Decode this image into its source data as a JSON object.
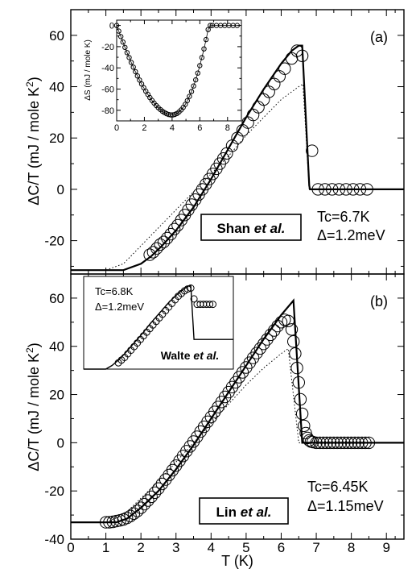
{
  "chart_data": [
    {
      "panel": "(a)",
      "type": "line",
      "xlabel": "",
      "ylabel": "ΔC/T (mJ / mole K²)",
      "xlim": [
        0,
        9.5
      ],
      "ylim": [
        -33,
        70
      ],
      "x_ticks": [
        0,
        1,
        2,
        3,
        4,
        5,
        6,
        7,
        8,
        9
      ],
      "y_ticks": [
        -20,
        0,
        20,
        40,
        60
      ],
      "y_tick_labels": [
        "-20",
        "0",
        "20",
        "40",
        "60"
      ],
      "grid": false,
      "series": [
        {
          "style": "solid",
          "x": [
            0,
            1.5,
            2.0,
            2.3,
            2.6,
            3.0,
            3.5,
            4.0,
            4.5,
            5.0,
            5.5,
            6.0,
            6.3,
            6.5,
            6.6,
            6.8,
            6.82,
            9.5
          ],
          "y": [
            -31.5,
            -31.5,
            -29,
            -26,
            -22,
            -16,
            -7,
            4,
            16,
            28,
            39,
            49,
            54,
            56,
            56,
            1.5,
            0,
            0
          ]
        },
        {
          "style": "dotted",
          "x": [
            0,
            1.0,
            1.5,
            2.0,
            2.5,
            3.0,
            3.5,
            4.0,
            4.5,
            5.0,
            5.5,
            6.0,
            6.5,
            6.62,
            6.8,
            9.5
          ],
          "y": [
            -31.5,
            -31.5,
            -29,
            -22,
            -15,
            -8,
            -1,
            6,
            13,
            21,
            28,
            35,
            40,
            41,
            0,
            0
          ]
        },
        {
          "style": "open-circle",
          "x": [
            2.25,
            2.35,
            2.45,
            2.55,
            2.65,
            2.75,
            2.85,
            2.95,
            3.05,
            3.15,
            3.25,
            3.35,
            3.45,
            3.55,
            3.65,
            3.75,
            3.85,
            3.95,
            4.05,
            4.15,
            4.25,
            4.35,
            4.45,
            4.6,
            4.75,
            4.9,
            5.05,
            5.2,
            5.35,
            5.5,
            5.65,
            5.8,
            5.95,
            6.1,
            6.3,
            6.45,
            6.6,
            6.88,
            7.05,
            7.25,
            7.45,
            7.65,
            7.85,
            8.05,
            8.25,
            8.45
          ],
          "y": [
            -25.5,
            -24.5,
            -23,
            -21.5,
            -20.5,
            -19,
            -17.5,
            -15.5,
            -14,
            -12,
            -10,
            -8,
            -6,
            -4,
            -2,
            0,
            2,
            4,
            6,
            8,
            10,
            12,
            14,
            17,
            20,
            23,
            26,
            29,
            32,
            35,
            38,
            41,
            44,
            47,
            51,
            54,
            52,
            15,
            0,
            0,
            0,
            0,
            0,
            0,
            0,
            0
          ]
        }
      ],
      "annotations": {
        "box_name": "Shan ",
        "box_etal": "et al.",
        "tc": "Tc=6.7K",
        "gap": "Δ=1.2meV"
      }
    },
    {
      "panel": "(a) inset",
      "type": "line",
      "xlabel": "",
      "ylabel": "ΔS (mJ / mole K)",
      "xlim": [
        0,
        9
      ],
      "ylim": [
        -90,
        5
      ],
      "x_ticks": [
        0,
        2,
        4,
        6,
        8
      ],
      "y_ticks": [
        -80,
        -60,
        -40,
        -20,
        0
      ],
      "grid": false,
      "series": [
        {
          "style": "line-with-open-circles",
          "x": [
            0.0,
            0.15,
            0.3,
            0.45,
            0.6,
            0.75,
            0.9,
            1.05,
            1.2,
            1.35,
            1.5,
            1.65,
            1.8,
            1.95,
            2.1,
            2.25,
            2.4,
            2.55,
            2.7,
            2.85,
            3.0,
            3.15,
            3.3,
            3.45,
            3.6,
            3.75,
            3.9,
            4.05,
            4.2,
            4.35,
            4.5,
            4.65,
            4.8,
            4.95,
            5.1,
            5.25,
            5.4,
            5.55,
            5.7,
            5.85,
            6.0,
            6.15,
            6.3,
            6.45,
            6.6,
            6.75,
            6.9,
            7.2,
            7.5,
            7.8,
            8.1,
            8.4,
            8.7
          ],
          "y": [
            0.0,
            -5.3,
            -10.5,
            -15.7,
            -20.7,
            -25.6,
            -30.3,
            -34.9,
            -39.3,
            -43.6,
            -47.6,
            -51.5,
            -55.2,
            -58.7,
            -62.0,
            -65.1,
            -68.0,
            -70.7,
            -73.2,
            -75.5,
            -77.5,
            -79.3,
            -80.9,
            -82.2,
            -83.2,
            -84.0,
            -84.4,
            -84.4,
            -83.9,
            -83.0,
            -81.6,
            -79.7,
            -77.3,
            -74.4,
            -70.9,
            -66.9,
            -62.3,
            -57.1,
            -51.3,
            -44.9,
            -37.9,
            -30.3,
            -22.1,
            -13.3,
            -3.9,
            0,
            0,
            0,
            0,
            0,
            0,
            0,
            0
          ]
        }
      ]
    },
    {
      "panel": "(b)",
      "type": "line",
      "xlabel": "T (K)",
      "ylabel": "ΔC/T (mJ / mole K²)",
      "xlim": [
        0,
        9.5
      ],
      "ylim": [
        -40,
        70
      ],
      "x_ticks": [
        0,
        1,
        2,
        3,
        4,
        5,
        6,
        7,
        8,
        9
      ],
      "y_ticks": [
        -40,
        -20,
        0,
        20,
        40,
        60
      ],
      "y_tick_labels": [
        "-40",
        "-20",
        "0",
        "20",
        "40",
        "60"
      ],
      "grid": false,
      "series": [
        {
          "style": "solid",
          "x": [
            0,
            1.3,
            1.6,
            2.0,
            2.5,
            3.0,
            3.5,
            4.0,
            4.5,
            5.0,
            5.5,
            6.0,
            6.35,
            6.6,
            9.5
          ],
          "y": [
            -33,
            -33,
            -31.5,
            -27,
            -20,
            -11,
            -1,
            10,
            21,
            32,
            43,
            53,
            59,
            0,
            0
          ]
        },
        {
          "style": "dotted",
          "x": [
            0,
            1.0,
            1.5,
            2.0,
            2.5,
            3.0,
            3.5,
            4.0,
            4.5,
            5.0,
            5.5,
            6.0,
            6.2,
            6.5,
            9.5
          ],
          "y": [
            -33,
            -33,
            -30,
            -23,
            -16,
            -8,
            0,
            8,
            16,
            24,
            31,
            37,
            39,
            0,
            0
          ]
        },
        {
          "style": "open-circle",
          "x": [
            1.0,
            1.1,
            1.2,
            1.3,
            1.4,
            1.5,
            1.6,
            1.7,
            1.8,
            1.9,
            2.0,
            2.1,
            2.2,
            2.3,
            2.4,
            2.5,
            2.6,
            2.7,
            2.8,
            2.9,
            3.0,
            3.1,
            3.2,
            3.3,
            3.4,
            3.5,
            3.6,
            3.7,
            3.8,
            3.9,
            4.0,
            4.1,
            4.2,
            4.3,
            4.4,
            4.5,
            4.6,
            4.7,
            4.8,
            4.9,
            5.0,
            5.1,
            5.2,
            5.3,
            5.4,
            5.5,
            5.6,
            5.7,
            5.8,
            5.9,
            6.0,
            6.1,
            6.2,
            6.3,
            6.35,
            6.4,
            6.45,
            6.5,
            6.55,
            6.6,
            6.65,
            6.7,
            6.75,
            6.8,
            6.85,
            6.9,
            7.0,
            7.1,
            7.2,
            7.3,
            7.4,
            7.5,
            7.6,
            7.7,
            7.8,
            7.9,
            8.0,
            8.1,
            8.2,
            8.3,
            8.4,
            8.5
          ],
          "y": [
            -33,
            -33,
            -32.8,
            -32.5,
            -32.2,
            -31.8,
            -31.2,
            -30.4,
            -29.4,
            -28.3,
            -27.0,
            -25.5,
            -24.0,
            -22.4,
            -20.7,
            -19.0,
            -17.1,
            -15.3,
            -13.4,
            -11.4,
            -9.5,
            -7.5,
            -5.5,
            -3.5,
            -1.5,
            0.5,
            2.5,
            4.6,
            6.6,
            8.7,
            10.7,
            12.8,
            14.8,
            16.9,
            19.0,
            21.0,
            23.1,
            25.1,
            27.2,
            29.2,
            31.2,
            33.2,
            35.2,
            37.2,
            39.1,
            41.0,
            42.9,
            44.8,
            46.6,
            48.4,
            50,
            51,
            50.5,
            47,
            42,
            37,
            31,
            25,
            18,
            12,
            7,
            4,
            2,
            1,
            0.5,
            0.3,
            0,
            0,
            0,
            0,
            0,
            0,
            0,
            0,
            0,
            0,
            0,
            0,
            0,
            0,
            0,
            0
          ]
        }
      ],
      "annotations": {
        "box_name": "Lin ",
        "box_etal": "et al.",
        "tc": "Tc=6.45K",
        "gap": "Δ=1.15meV"
      }
    },
    {
      "panel": "(b) inset",
      "type": "line",
      "xlabel": "",
      "ylabel": "",
      "xlim": [
        0,
        9.5
      ],
      "ylim": [
        -33,
        70
      ],
      "grid": false,
      "series": [
        {
          "style": "solid",
          "x": [
            0,
            1.4,
            1.8,
            2.2,
            2.6,
            3.0,
            3.4,
            3.8,
            4.2,
            4.6,
            5.0,
            5.4,
            5.8,
            6.2,
            6.6,
            6.8,
            7.0,
            9.5
          ],
          "y": [
            -33,
            -33,
            -29,
            -23,
            -16,
            -8,
            0,
            8,
            17,
            25,
            33,
            41,
            48,
            54,
            59,
            60,
            0,
            0
          ]
        },
        {
          "style": "open-circle",
          "x": [
            2.2,
            2.4,
            2.6,
            2.8,
            3.0,
            3.2,
            3.4,
            3.6,
            3.8,
            4.0,
            4.2,
            4.4,
            4.6,
            4.8,
            5.0,
            5.2,
            5.4,
            5.6,
            5.8,
            6.0,
            6.2,
            6.4,
            6.6,
            6.8,
            7.0,
            7.2,
            7.4,
            7.6,
            7.8,
            8.0,
            8.2
          ],
          "y": [
            -26,
            -23,
            -20,
            -16,
            -12,
            -8,
            -4,
            0,
            4,
            8,
            12,
            16,
            20,
            24,
            28,
            32,
            36,
            40,
            44,
            48,
            51,
            54,
            56,
            57,
            45,
            39,
            39,
            39,
            39,
            39,
            39
          ]
        }
      ],
      "annotations": {
        "tc": "Tc=6.8K",
        "gap": "Δ=1.2meV",
        "box_name": "Walte ",
        "box_etal": "et al."
      }
    }
  ],
  "panel_labels": {
    "a": "(a)",
    "b": "(b)"
  },
  "axis_labels": {
    "ylabel_text": "ΔC/T (mJ / mole K",
    "ylabel_sup": "2",
    "ylabel_close": ")",
    "xlabel": "T (K)",
    "inset_ylabel": "ΔS (mJ / mole K)"
  },
  "x_tick_labels": [
    "0",
    "1",
    "2",
    "3",
    "4",
    "5",
    "6",
    "7",
    "8",
    "9"
  ],
  "inset_a_x_tick_labels": [
    "0",
    "2",
    "4",
    "6",
    "8"
  ],
  "inset_a_y_tick_labels": [
    "-80",
    "-60",
    "-40",
    "-20",
    "0"
  ]
}
